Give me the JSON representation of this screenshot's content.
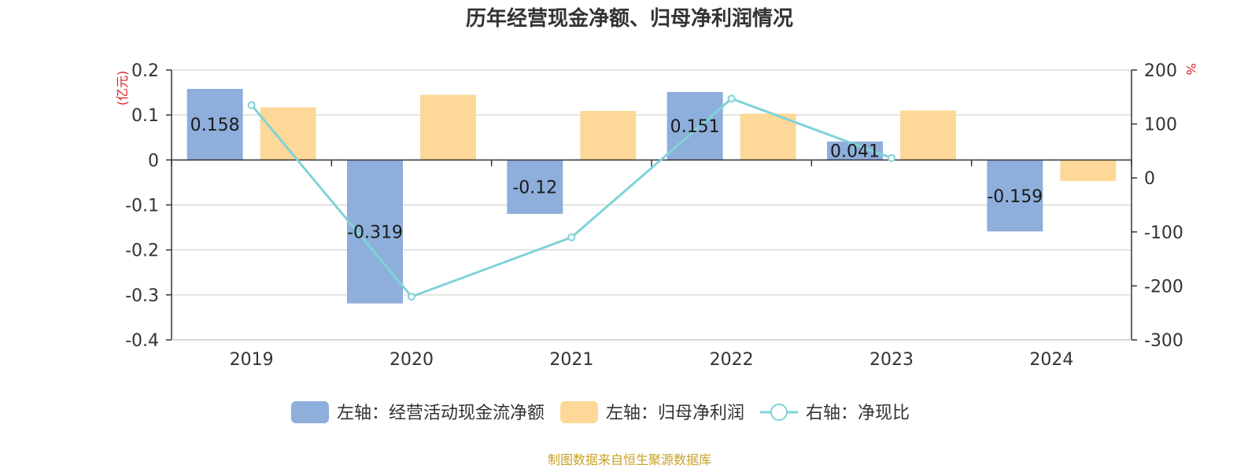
{
  "chart_data": {
    "type": "bar",
    "title": "历年经营现金净额、归母净利润情况",
    "categories": [
      "2019",
      "2020",
      "2021",
      "2022",
      "2023",
      "2024"
    ],
    "left_axis": {
      "unit": "(亿元)",
      "ylim": [
        -0.4,
        0.2
      ],
      "ticks": [
        0.2,
        0.1,
        0,
        -0.1,
        -0.2,
        -0.3,
        -0.4
      ],
      "tick_labels": [
        "0.2",
        "0.1",
        "0",
        "-0.1",
        "-0.2",
        "-0.3",
        "-0.4"
      ]
    },
    "right_axis": {
      "unit": "%",
      "ylim": [
        -300,
        200
      ],
      "ticks": [
        200,
        100,
        0,
        -100,
        -200,
        -300
      ],
      "tick_labels": [
        "200",
        "100",
        "0",
        "-100",
        "-200",
        "-300"
      ]
    },
    "series": [
      {
        "name": "左轴：经营活动现金流净额",
        "type": "bar",
        "axis": "left",
        "color": "#8eaedb",
        "values": [
          0.158,
          -0.319,
          -0.12,
          0.151,
          0.041,
          -0.159
        ],
        "labels": [
          "0.158",
          "-0.319",
          "-0.12",
          "0.151",
          "0.041",
          "-0.159"
        ]
      },
      {
        "name": "左轴：归母净利润",
        "type": "bar",
        "axis": "left",
        "color": "#fdd898",
        "values": [
          0.117,
          0.145,
          0.109,
          0.103,
          0.11,
          -0.047
        ]
      },
      {
        "name": "右轴：净现比",
        "type": "line",
        "axis": "right",
        "color": "#7fd3d8",
        "values": [
          135,
          -220,
          -110,
          147,
          37,
          null
        ]
      }
    ],
    "grid": true,
    "legend_position": "bottom"
  },
  "unit_color": "#e01e1e",
  "source": {
    "text": "制图数据来自恒生聚源数据库",
    "color": "#c9a227"
  }
}
